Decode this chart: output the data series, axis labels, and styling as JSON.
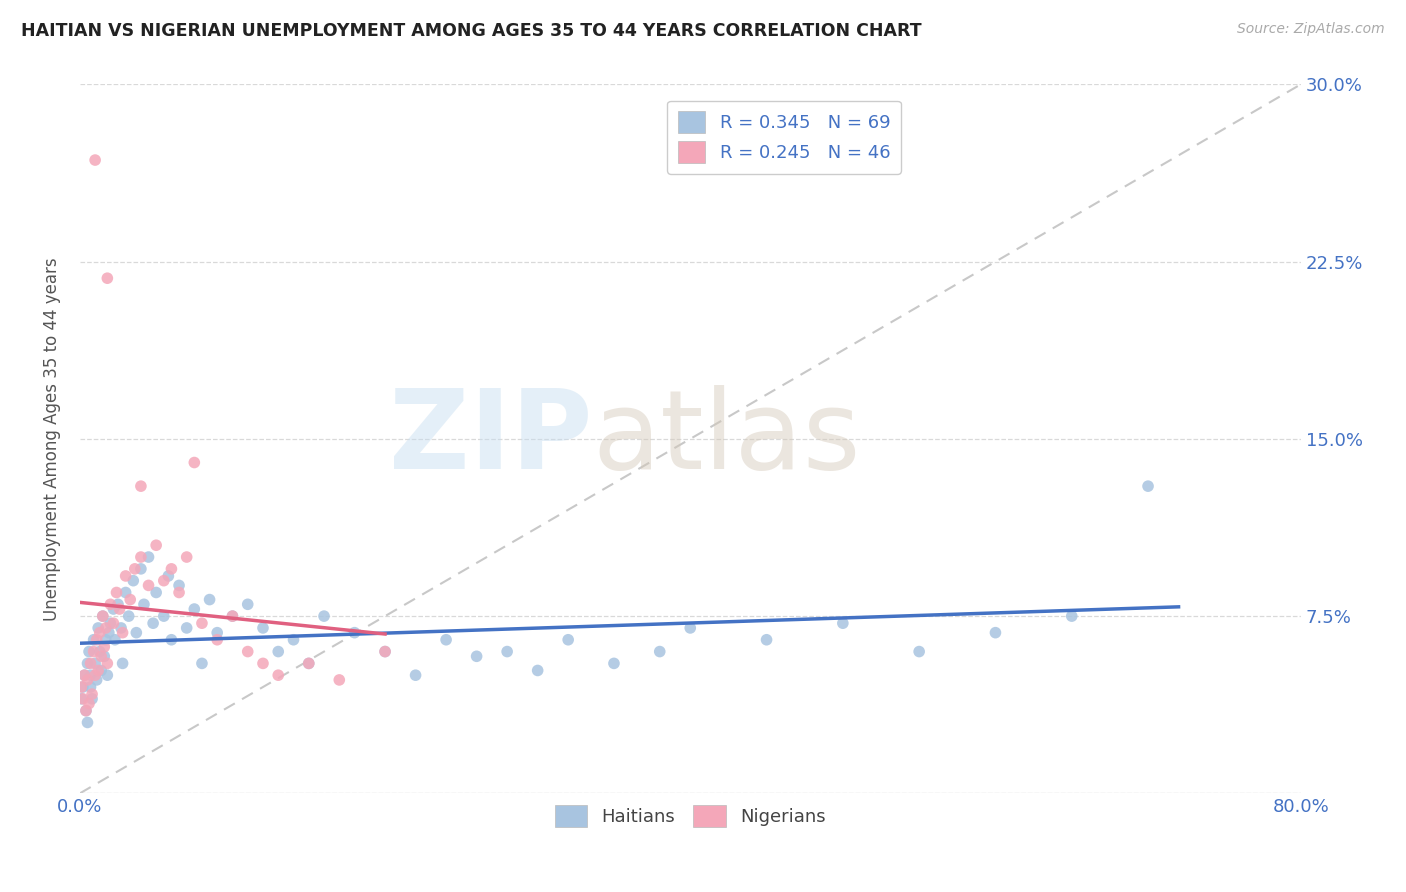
{
  "title": "HAITIAN VS NIGERIAN UNEMPLOYMENT AMONG AGES 35 TO 44 YEARS CORRELATION CHART",
  "source": "Source: ZipAtlas.com",
  "ylabel": "Unemployment Among Ages 35 to 44 years",
  "xlim": [
    0,
    0.8
  ],
  "ylim": [
    0,
    0.3
  ],
  "color_haitian": "#a8c4e0",
  "color_nigerian": "#f4a7b9",
  "color_line_haitian": "#4472c4",
  "color_line_nigerian": "#e06080",
  "color_trend_dashed": "#c8c8c8",
  "haitian_x": [
    0.001,
    0.002,
    0.003,
    0.004,
    0.005,
    0.005,
    0.006,
    0.007,
    0.007,
    0.008,
    0.009,
    0.01,
    0.011,
    0.012,
    0.013,
    0.014,
    0.015,
    0.016,
    0.017,
    0.018,
    0.019,
    0.02,
    0.022,
    0.023,
    0.025,
    0.027,
    0.028,
    0.03,
    0.032,
    0.035,
    0.037,
    0.04,
    0.042,
    0.045,
    0.048,
    0.05,
    0.055,
    0.058,
    0.06,
    0.065,
    0.07,
    0.075,
    0.08,
    0.085,
    0.09,
    0.1,
    0.11,
    0.12,
    0.13,
    0.14,
    0.15,
    0.16,
    0.18,
    0.2,
    0.22,
    0.24,
    0.26,
    0.28,
    0.3,
    0.32,
    0.35,
    0.38,
    0.4,
    0.45,
    0.5,
    0.55,
    0.6,
    0.65,
    0.7
  ],
  "haitian_y": [
    0.04,
    0.045,
    0.05,
    0.035,
    0.055,
    0.03,
    0.06,
    0.045,
    0.05,
    0.04,
    0.065,
    0.055,
    0.048,
    0.07,
    0.06,
    0.052,
    0.075,
    0.058,
    0.065,
    0.05,
    0.068,
    0.072,
    0.078,
    0.065,
    0.08,
    0.07,
    0.055,
    0.085,
    0.075,
    0.09,
    0.068,
    0.095,
    0.08,
    0.1,
    0.072,
    0.085,
    0.075,
    0.092,
    0.065,
    0.088,
    0.07,
    0.078,
    0.055,
    0.082,
    0.068,
    0.075,
    0.08,
    0.07,
    0.06,
    0.065,
    0.055,
    0.075,
    0.068,
    0.06,
    0.05,
    0.065,
    0.058,
    0.06,
    0.052,
    0.065,
    0.055,
    0.06,
    0.07,
    0.065,
    0.072,
    0.06,
    0.068,
    0.075,
    0.13
  ],
  "nigerian_x": [
    0.001,
    0.002,
    0.003,
    0.004,
    0.005,
    0.006,
    0.007,
    0.008,
    0.009,
    0.01,
    0.011,
    0.012,
    0.013,
    0.014,
    0.015,
    0.016,
    0.017,
    0.018,
    0.02,
    0.022,
    0.024,
    0.026,
    0.028,
    0.03,
    0.033,
    0.036,
    0.04,
    0.045,
    0.05,
    0.055,
    0.06,
    0.065,
    0.07,
    0.08,
    0.09,
    0.1,
    0.11,
    0.12,
    0.13,
    0.15,
    0.17,
    0.2,
    0.01,
    0.018,
    0.075,
    0.04
  ],
  "nigerian_y": [
    0.045,
    0.04,
    0.05,
    0.035,
    0.048,
    0.038,
    0.055,
    0.042,
    0.06,
    0.05,
    0.065,
    0.052,
    0.068,
    0.058,
    0.075,
    0.062,
    0.07,
    0.055,
    0.08,
    0.072,
    0.085,
    0.078,
    0.068,
    0.092,
    0.082,
    0.095,
    0.1,
    0.088,
    0.105,
    0.09,
    0.095,
    0.085,
    0.1,
    0.072,
    0.065,
    0.075,
    0.06,
    0.055,
    0.05,
    0.055,
    0.048,
    0.06,
    0.268,
    0.218,
    0.14,
    0.13
  ]
}
